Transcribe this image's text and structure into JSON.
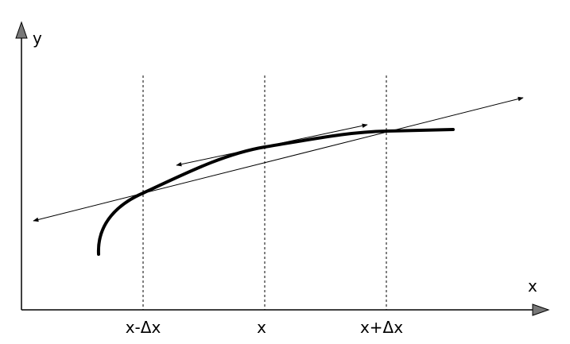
{
  "axes": {
    "y_label": "y",
    "x_label": "x"
  },
  "ticks": [
    "x-Δx",
    "x",
    "x+Δx"
  ]
}
